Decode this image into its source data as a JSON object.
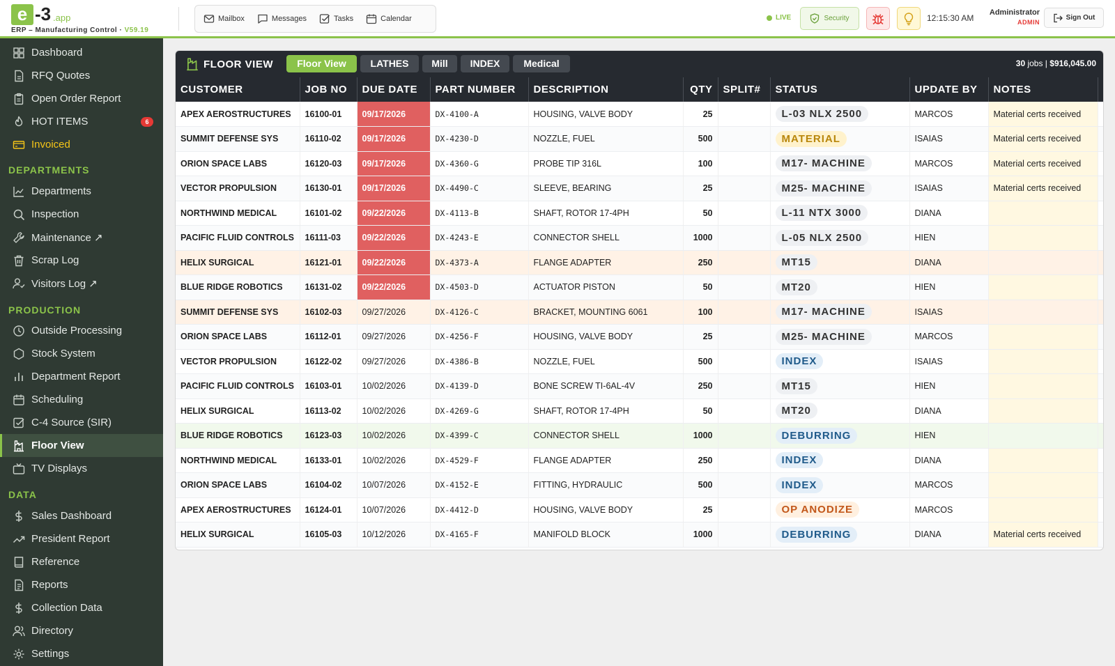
{
  "app": {
    "logo_letter": "e",
    "logo_num": "-3",
    "logo_domain": ".app",
    "subtitle": "ERP – Manufacturing Control",
    "version": "V59.19"
  },
  "topnav": {
    "items": [
      {
        "label": "Mailbox",
        "icon": "mail-icon"
      },
      {
        "label": "Messages",
        "icon": "message-icon"
      },
      {
        "label": "Tasks",
        "icon": "tasks-icon"
      },
      {
        "label": "Calendar",
        "icon": "calendar-icon"
      }
    ],
    "live_label": "LIVE",
    "security_label": "Security",
    "clock": "12:15:30 AM",
    "user_name": "Administrator",
    "user_role": "ADMIN",
    "signout_label": "Sign Out"
  },
  "sidebar": {
    "top_items": [
      {
        "label": "Dashboard"
      },
      {
        "label": "RFQ Quotes"
      },
      {
        "label": "Open Order Report"
      },
      {
        "label": "HOT ITEMS",
        "badge": "6"
      },
      {
        "label": "Invoiced"
      }
    ],
    "departments_heading": "DEPARTMENTS",
    "departments_items": [
      {
        "label": "Departments"
      },
      {
        "label": "Inspection"
      },
      {
        "label": "Maintenance ↗"
      },
      {
        "label": "Scrap Log"
      },
      {
        "label": "Visitors Log ↗"
      }
    ],
    "production_heading": "PRODUCTION",
    "production_items": [
      {
        "label": "Outside Processing"
      },
      {
        "label": "Stock System"
      },
      {
        "label": "Department Report"
      },
      {
        "label": "Scheduling"
      },
      {
        "label": "C-4 Source (SIR)"
      },
      {
        "label": "Floor View"
      },
      {
        "label": "TV Displays"
      }
    ],
    "data_heading": "DATA",
    "data_items": [
      {
        "label": "Sales Dashboard"
      },
      {
        "label": "President Report"
      },
      {
        "label": "Reference"
      },
      {
        "label": "Reports"
      },
      {
        "label": "Collection Data"
      },
      {
        "label": "Directory"
      },
      {
        "label": "Settings"
      }
    ]
  },
  "floor": {
    "title": "FLOOR VIEW",
    "tabs": [
      "Floor View",
      "LATHES",
      "Mill",
      "INDEX",
      "Medical"
    ],
    "active_tab": "Floor View",
    "summary_count": "30",
    "summary_jobs_word": " jobs | ",
    "summary_total": "$916,045.00",
    "columns": [
      "CUSTOMER",
      "JOB NO",
      "DUE DATE",
      "PART NUMBER",
      "DESCRIPTION",
      "QTY",
      "SPLIT#",
      "STATUS",
      "UPDATE BY",
      "NOTES"
    ],
    "rows": [
      {
        "customer": "APEX AEROSTRUCTURES",
        "job": "16100-01",
        "due": "09/17/2026",
        "late": true,
        "part": "DX-4100-A",
        "desc": "HOUSING, VALVE BODY",
        "qty": "25",
        "split": "",
        "status": "L-03 NLX 2500",
        "status_type": "gray",
        "by": "MARCOS",
        "notes": "Material certs received",
        "hl": ""
      },
      {
        "customer": "SUMMIT DEFENSE SYS",
        "job": "16110-02",
        "due": "09/17/2026",
        "late": true,
        "part": "DX-4230-D",
        "desc": "NOZZLE, FUEL",
        "qty": "500",
        "split": "",
        "status": "MATERIAL",
        "status_type": "mat",
        "by": "ISAIAS",
        "notes": "Material certs received",
        "hl": ""
      },
      {
        "customer": "ORION SPACE LABS",
        "job": "16120-03",
        "due": "09/17/2026",
        "late": true,
        "part": "DX-4360-G",
        "desc": "PROBE TIP 316L",
        "qty": "100",
        "split": "",
        "status": "M17- MACHINE",
        "status_type": "gray",
        "by": "MARCOS",
        "notes": "Material certs received",
        "hl": ""
      },
      {
        "customer": "VECTOR PROPULSION",
        "job": "16130-01",
        "due": "09/17/2026",
        "late": true,
        "part": "DX-4490-C",
        "desc": "SLEEVE, BEARING",
        "qty": "25",
        "split": "",
        "status": "M25- MACHINE",
        "status_type": "gray",
        "by": "ISAIAS",
        "notes": "Material certs received",
        "hl": ""
      },
      {
        "customer": "NORTHWIND MEDICAL",
        "job": "16101-02",
        "due": "09/22/2026",
        "late": true,
        "part": "DX-4113-B",
        "desc": "SHAFT, ROTOR 17-4PH",
        "qty": "50",
        "split": "",
        "status": "L-11 NTX 3000",
        "status_type": "gray",
        "by": "DIANA",
        "notes": "",
        "hl": ""
      },
      {
        "customer": "PACIFIC FLUID CONTROLS",
        "job": "16111-03",
        "due": "09/22/2026",
        "late": true,
        "part": "DX-4243-E",
        "desc": "CONNECTOR SHELL",
        "qty": "1000",
        "split": "",
        "status": "L-05 NLX 2500",
        "status_type": "gray",
        "by": "HIEN",
        "notes": "",
        "hl": ""
      },
      {
        "customer": "HELIX SURGICAL",
        "job": "16121-01",
        "due": "09/22/2026",
        "late": true,
        "part": "DX-4373-A",
        "desc": "FLANGE ADAPTER",
        "qty": "250",
        "split": "",
        "status": "MT15",
        "status_type": "gray",
        "by": "DIANA",
        "notes": "",
        "hl": "peach"
      },
      {
        "customer": "BLUE RIDGE ROBOTICS",
        "job": "16131-02",
        "due": "09/22/2026",
        "late": true,
        "part": "DX-4503-D",
        "desc": "ACTUATOR PISTON",
        "qty": "50",
        "split": "",
        "status": "MT20",
        "status_type": "gray",
        "by": "HIEN",
        "notes": "",
        "hl": ""
      },
      {
        "customer": "SUMMIT DEFENSE SYS",
        "job": "16102-03",
        "due": "09/27/2026",
        "late": false,
        "part": "DX-4126-C",
        "desc": "BRACKET, MOUNTING 6061",
        "qty": "100",
        "split": "",
        "status": "M17- MACHINE",
        "status_type": "gray",
        "by": "ISAIAS",
        "notes": "",
        "hl": "peach"
      },
      {
        "customer": "ORION SPACE LABS",
        "job": "16112-01",
        "due": "09/27/2026",
        "late": false,
        "part": "DX-4256-F",
        "desc": "HOUSING, VALVE BODY",
        "qty": "25",
        "split": "",
        "status": "M25- MACHINE",
        "status_type": "gray",
        "by": "MARCOS",
        "notes": "",
        "hl": ""
      },
      {
        "customer": "VECTOR PROPULSION",
        "job": "16122-02",
        "due": "09/27/2026",
        "late": false,
        "part": "DX-4386-B",
        "desc": "NOZZLE, FUEL",
        "qty": "500",
        "split": "",
        "status": "INDEX",
        "status_type": "index",
        "by": "ISAIAS",
        "notes": "",
        "hl": ""
      },
      {
        "customer": "PACIFIC FLUID CONTROLS",
        "job": "16103-01",
        "due": "10/02/2026",
        "late": false,
        "part": "DX-4139-D",
        "desc": "BONE SCREW TI-6AL-4V",
        "qty": "250",
        "split": "",
        "status": "MT15",
        "status_type": "gray",
        "by": "HIEN",
        "notes": "",
        "hl": ""
      },
      {
        "customer": "HELIX SURGICAL",
        "job": "16113-02",
        "due": "10/02/2026",
        "late": false,
        "part": "DX-4269-G",
        "desc": "SHAFT, ROTOR 17-4PH",
        "qty": "50",
        "split": "",
        "status": "MT20",
        "status_type": "gray",
        "by": "DIANA",
        "notes": "",
        "hl": ""
      },
      {
        "customer": "BLUE RIDGE ROBOTICS",
        "job": "16123-03",
        "due": "10/02/2026",
        "late": false,
        "part": "DX-4399-C",
        "desc": "CONNECTOR SHELL",
        "qty": "1000",
        "split": "",
        "status": "DEBURRING",
        "status_type": "debur",
        "by": "HIEN",
        "notes": "",
        "hl": "green"
      },
      {
        "customer": "NORTHWIND MEDICAL",
        "job": "16133-01",
        "due": "10/02/2026",
        "late": false,
        "part": "DX-4529-F",
        "desc": "FLANGE ADAPTER",
        "qty": "250",
        "split": "",
        "status": "INDEX",
        "status_type": "index",
        "by": "DIANA",
        "notes": "",
        "hl": ""
      },
      {
        "customer": "ORION SPACE LABS",
        "job": "16104-02",
        "due": "10/07/2026",
        "late": false,
        "part": "DX-4152-E",
        "desc": "FITTING, HYDRAULIC",
        "qty": "500",
        "split": "",
        "status": "INDEX",
        "status_type": "index",
        "by": "MARCOS",
        "notes": "",
        "hl": ""
      },
      {
        "customer": "APEX AEROSTRUCTURES",
        "job": "16124-01",
        "due": "10/07/2026",
        "late": false,
        "part": "DX-4412-D",
        "desc": "HOUSING, VALVE BODY",
        "qty": "25",
        "split": "",
        "status": "OP ANODIZE",
        "status_type": "anod",
        "by": "MARCOS",
        "notes": "",
        "hl": ""
      },
      {
        "customer": "HELIX SURGICAL",
        "job": "16105-03",
        "due": "10/12/2026",
        "late": false,
        "part": "DX-4165-F",
        "desc": "MANIFOLD BLOCK",
        "qty": "1000",
        "split": "",
        "status": "DEBURRING",
        "status_type": "debur",
        "by": "DIANA",
        "notes": "Material certs received",
        "hl": ""
      }
    ]
  },
  "colors": {
    "brand": "#8bc34a",
    "sidebar_bg": "#2f3a33",
    "header_dark": "#262a30",
    "late_red": "#e06060"
  }
}
